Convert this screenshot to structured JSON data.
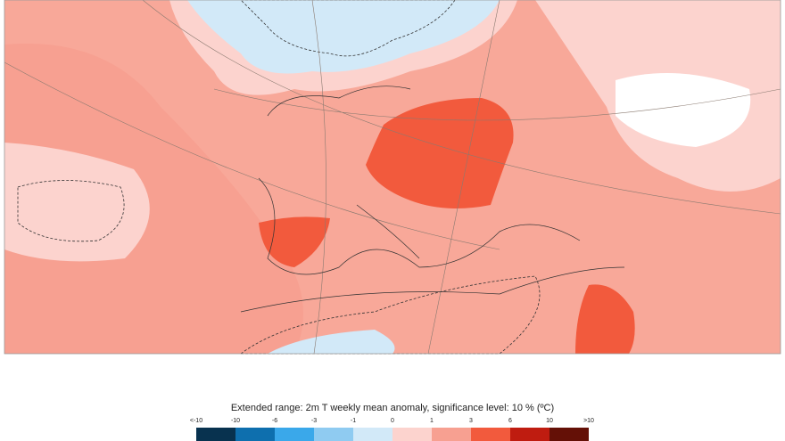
{
  "caption": "Extended range: 2m T weekly mean anomaly, significance level: 10 % (ºC)",
  "legend": {
    "labels": [
      "<-10",
      "-10",
      "-6",
      "-3",
      "-1",
      "0",
      "1",
      "3",
      "6",
      "10",
      ">10"
    ],
    "colors": [
      "#08324f",
      "#0e6fae",
      "#3aa8ea",
      "#8fcbf1",
      "#d2e9f8",
      "#fcd3ce",
      "#f7a091",
      "#f25a3d",
      "#bf1c10",
      "#641006"
    ]
  }
}
